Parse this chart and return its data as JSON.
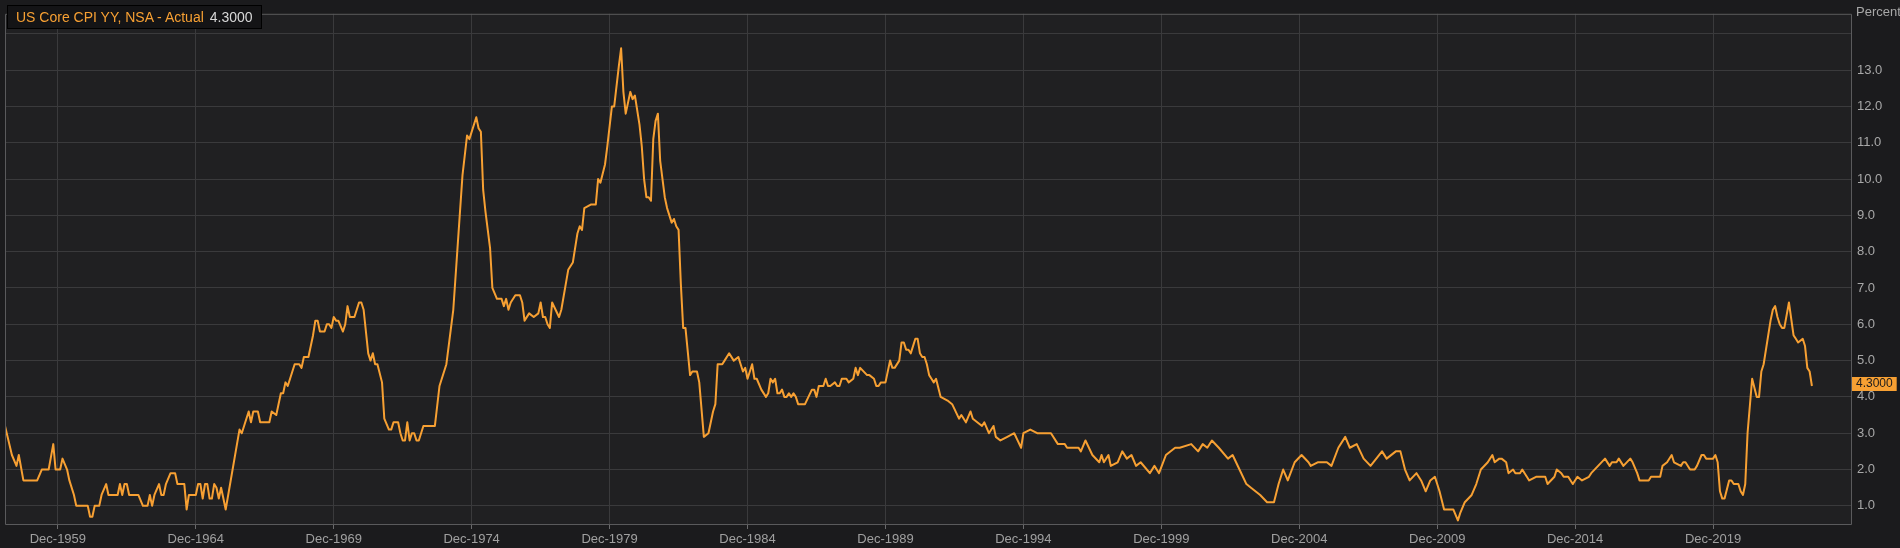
{
  "chart_data": {
    "type": "line",
    "ylabel": "Percent",
    "legend": "top left",
    "grid": true,
    "xlim": [
      "1958-01",
      "2024-12"
    ],
    "xticks": [
      {
        "value": "1959-12",
        "label": "Dec-1959"
      },
      {
        "value": "1964-12",
        "label": "Dec-1964"
      },
      {
        "value": "1969-12",
        "label": "Dec-1969"
      },
      {
        "value": "1974-12",
        "label": "Dec-1974"
      },
      {
        "value": "1979-12",
        "label": "Dec-1979"
      },
      {
        "value": "1984-12",
        "label": "Dec-1984"
      },
      {
        "value": "1989-12",
        "label": "Dec-1989"
      },
      {
        "value": "1994-12",
        "label": "Dec-1994"
      },
      {
        "value": "1999-12",
        "label": "Dec-1999"
      },
      {
        "value": "2004-12",
        "label": "Dec-2004"
      },
      {
        "value": "2009-12",
        "label": "Dec-2009"
      },
      {
        "value": "2014-12",
        "label": "Dec-2014"
      },
      {
        "value": "2019-12",
        "label": "Dec-2019"
      }
    ],
    "ylim": [
      0.5,
      14.55
    ],
    "yticks": [
      {
        "value": 1,
        "label": "1.0"
      },
      {
        "value": 2,
        "label": "2.0"
      },
      {
        "value": 3,
        "label": "3.0"
      },
      {
        "value": 4,
        "label": "4.0"
      },
      {
        "value": 5,
        "label": "5.0"
      },
      {
        "value": 6,
        "label": "6.0"
      },
      {
        "value": 7,
        "label": "7.0"
      },
      {
        "value": 8,
        "label": "8.0"
      },
      {
        "value": 9,
        "label": "9.0"
      },
      {
        "value": 10,
        "label": "10.0"
      },
      {
        "value": 11,
        "label": "11.0"
      },
      {
        "value": 12,
        "label": "12.0"
      },
      {
        "value": 13,
        "label": "13.0"
      },
      {
        "value": 14,
        "label": null
      }
    ],
    "series": [
      {
        "name": "US Core CPI YY, NSA - Actual",
        "color": "#f7a033",
        "x": [
          "1958-01",
          "1958-04",
          "1958-06",
          "1958-07",
          "1958-09",
          "1959-03",
          "1959-05",
          "1959-08",
          "1959-10",
          "1959-11",
          "1960-01",
          "1960-02",
          "1960-04",
          "1960-05",
          "1960-07",
          "1960-08",
          "1961-01",
          "1961-02",
          "1961-03",
          "1961-04",
          "1961-06",
          "1961-07",
          "1961-09",
          "1961-10",
          "1962-02",
          "1962-03",
          "1962-04",
          "1962-05",
          "1962-06",
          "1962-07",
          "1962-11",
          "1963-01",
          "1963-03",
          "1963-04",
          "1963-05",
          "1963-06",
          "1963-08",
          "1963-09",
          "1963-10",
          "1963-11",
          "1964-01",
          "1964-03",
          "1964-04",
          "1964-07",
          "1964-08",
          "1964-09",
          "1964-12",
          "1965-01",
          "1965-02",
          "1965-03",
          "1965-04",
          "1965-05",
          "1965-06",
          "1965-07",
          "1965-08",
          "1965-09",
          "1965-10",
          "1965-11",
          "1965-12",
          "1966-01",
          "1966-07",
          "1966-08",
          "1966-11",
          "1966-12",
          "1967-01",
          "1967-03",
          "1967-04",
          "1967-08",
          "1967-09",
          "1967-11",
          "1968-01",
          "1968-02",
          "1968-03",
          "1968-04",
          "1968-07",
          "1968-09",
          "1968-10",
          "1968-11",
          "1969-01",
          "1969-03",
          "1969-04",
          "1969-05",
          "1969-06",
          "1969-08",
          "1969-09",
          "1969-10",
          "1969-11",
          "1969-12",
          "1970-01",
          "1970-02",
          "1970-04",
          "1970-05",
          "1970-06",
          "1970-07",
          "1970-09",
          "1970-11",
          "1970-12",
          "1971-01",
          "1971-03",
          "1971-04",
          "1971-05",
          "1971-06",
          "1971-07",
          "1971-09",
          "1971-10",
          "1971-12",
          "1972-01",
          "1972-02",
          "1972-04",
          "1972-05",
          "1972-06",
          "1972-07",
          "1972-08",
          "1972-09",
          "1972-10",
          "1972-11",
          "1972-12",
          "1973-01",
          "1973-03",
          "1973-08",
          "1973-10",
          "1974-01",
          "1974-04",
          "1974-08",
          "1974-10",
          "1974-11",
          "1975-02",
          "1975-03",
          "1975-04",
          "1975-05",
          "1975-06",
          "1975-08",
          "1975-09",
          "1975-11",
          "1976-01",
          "1976-02",
          "1976-03",
          "1976-04",
          "1976-05",
          "1976-07",
          "1976-09",
          "1976-10",
          "1976-11",
          "1977-01",
          "1977-03",
          "1977-05",
          "1977-06",
          "1977-07",
          "1977-08",
          "1977-09",
          "1977-10",
          "1977-11",
          "1978-02",
          "1978-03",
          "1978-06",
          "1978-08",
          "1978-10",
          "1978-11",
          "1978-12",
          "1979-01",
          "1979-04",
          "1979-06",
          "1979-07",
          "1979-08",
          "1979-10",
          "1979-11",
          "1980-01",
          "1980-02",
          "1980-04",
          "1980-05",
          "1980-06",
          "1980-07",
          "1980-09",
          "1980-10",
          "1980-11",
          "1981-01",
          "1981-02",
          "1981-03",
          "1981-04",
          "1981-05",
          "1981-06",
          "1981-07",
          "1981-08",
          "1981-09",
          "1981-10",
          "1981-12",
          "1982-01",
          "1982-03",
          "1982-04",
          "1982-05",
          "1982-06",
          "1982-07",
          "1982-08",
          "1982-09",
          "1982-11",
          "1982-12",
          "1983-02",
          "1983-03",
          "1983-05",
          "1983-07",
          "1983-09",
          "1983-10",
          "1983-11",
          "1984-01",
          "1984-02",
          "1984-04",
          "1984-06",
          "1984-08",
          "1984-10",
          "1984-11",
          "1984-12",
          "1985-02",
          "1985-03",
          "1985-04",
          "1985-06",
          "1985-08",
          "1985-09",
          "1985-10",
          "1985-11",
          "1985-12",
          "1986-01",
          "1986-02",
          "1986-03",
          "1986-04",
          "1986-05",
          "1986-06",
          "1986-07",
          "1986-08",
          "1986-09",
          "1986-10",
          "1987-01",
          "1987-04",
          "1987-05",
          "1987-06",
          "1987-07",
          "1987-09",
          "1987-10",
          "1987-11",
          "1987-12",
          "1988-02",
          "1988-03",
          "1988-04",
          "1988-05",
          "1988-07",
          "1988-08",
          "1988-10",
          "1988-11",
          "1988-12",
          "1989-01",
          "1989-04",
          "1989-05",
          "1989-07",
          "1989-08",
          "1989-09",
          "1989-10",
          "1989-12",
          "1990-02",
          "1990-03",
          "1990-04",
          "1990-06",
          "1990-07",
          "1990-08",
          "1990-09",
          "1990-10",
          "1990-11",
          "1991-01",
          "1991-02",
          "1991-03",
          "1991-04",
          "1991-05",
          "1991-06",
          "1991-07",
          "1991-08",
          "1991-09",
          "1991-10",
          "1991-12",
          "1992-03",
          "1992-05",
          "1992-08",
          "1992-09",
          "1992-11",
          "1993-01",
          "1993-02",
          "1993-06",
          "1993-07",
          "1993-09",
          "1993-11",
          "1993-12",
          "1994-02",
          "1994-05",
          "1994-08",
          "1994-11",
          "1994-12",
          "1995-03",
          "1995-06",
          "1995-12",
          "1996-03",
          "1996-06",
          "1996-07",
          "1996-12",
          "1997-01",
          "1997-03",
          "1997-06",
          "1997-09",
          "1997-10",
          "1997-11",
          "1998-01",
          "1998-02",
          "1998-05",
          "1998-07",
          "1998-09",
          "1998-11",
          "1999-01",
          "1999-03",
          "1999-07",
          "1999-09",
          "1999-11",
          "2000-02",
          "2000-06",
          "2000-08",
          "2001-01",
          "2001-04",
          "2001-06",
          "2001-08",
          "2001-10",
          "2002-01",
          "2002-05",
          "2002-07",
          "2002-10",
          "2003-01",
          "2003-03",
          "2003-07",
          "2003-10",
          "2004-01",
          "2004-03",
          "2004-05",
          "2004-07",
          "2004-10",
          "2005-01",
          "2005-04",
          "2005-05",
          "2005-08",
          "2005-12",
          "2006-02",
          "2006-05",
          "2006-08",
          "2006-10",
          "2007-01",
          "2007-04",
          "2007-07",
          "2007-12",
          "2008-02",
          "2008-06",
          "2008-08",
          "2008-10",
          "2008-12",
          "2009-03",
          "2009-05",
          "2009-07",
          "2009-09",
          "2009-11",
          "2010-01",
          "2010-03",
          "2010-07",
          "2010-09",
          "2010-10",
          "2010-12",
          "2011-03",
          "2011-05",
          "2011-07",
          "2011-10",
          "2011-12",
          "2012-01",
          "2012-03",
          "2012-04",
          "2012-06",
          "2012-07",
          "2012-09",
          "2012-10",
          "2012-12",
          "2013-01",
          "2013-03",
          "2013-04",
          "2013-07",
          "2013-11",
          "2013-12",
          "2014-03",
          "2014-04",
          "2014-06",
          "2014-07",
          "2014-09",
          "2014-10",
          "2014-11",
          "2015-01",
          "2015-03",
          "2015-06",
          "2015-07",
          "2016-01",
          "2016-03",
          "2016-04",
          "2016-06",
          "2016-07",
          "2016-09",
          "2016-12",
          "2017-01",
          "2017-03",
          "2017-04",
          "2017-08",
          "2017-09",
          "2017-11",
          "2018-01",
          "2018-02",
          "2018-04",
          "2018-06",
          "2018-07",
          "2018-10",
          "2018-11",
          "2018-12",
          "2019-02",
          "2019-04",
          "2019-05",
          "2019-07",
          "2019-08",
          "2019-09",
          "2019-12",
          "2020-01",
          "2020-02",
          "2020-03",
          "2020-04",
          "2020-05",
          "2020-07",
          "2020-08",
          "2020-09",
          "2020-11",
          "2020-12",
          "2021-01",
          "2021-02",
          "2021-03",
          "2021-05",
          "2021-07",
          "2021-08",
          "2021-09",
          "2021-10",
          "2022-01",
          "2022-02",
          "2022-03",
          "2022-04",
          "2022-05",
          "2022-06",
          "2022-07",
          "2022-09",
          "2022-11",
          "2022-12",
          "2023-01",
          "2023-03",
          "2023-04",
          "2023-05",
          "2023-06",
          "2023-07"
        ],
        "values": [
          3.2,
          2.4,
          2.1,
          2.4,
          1.7,
          1.7,
          2.0,
          2.0,
          2.7,
          2.0,
          2.0,
          2.3,
          2.0,
          1.7,
          1.3,
          1.0,
          1.0,
          0.7,
          0.7,
          1.0,
          1.0,
          1.3,
          1.6,
          1.3,
          1.3,
          1.6,
          1.3,
          1.6,
          1.6,
          1.3,
          1.3,
          1.0,
          1.0,
          1.3,
          1.0,
          1.3,
          1.6,
          1.3,
          1.3,
          1.6,
          1.9,
          1.9,
          1.6,
          1.6,
          0.9,
          1.3,
          1.3,
          1.6,
          1.6,
          1.2,
          1.6,
          1.6,
          1.2,
          1.2,
          1.6,
          1.5,
          1.2,
          1.5,
          1.2,
          0.9,
          3.1,
          3.0,
          3.6,
          3.3,
          3.6,
          3.6,
          3.3,
          3.3,
          3.6,
          3.5,
          4.1,
          4.1,
          4.4,
          4.3,
          4.9,
          4.9,
          4.8,
          5.1,
          5.1,
          5.7,
          6.1,
          6.1,
          5.8,
          5.8,
          6.0,
          6.0,
          5.9,
          6.2,
          6.1,
          6.1,
          5.8,
          6.0,
          6.5,
          6.2,
          6.2,
          6.6,
          6.6,
          6.4,
          5.2,
          5.0,
          5.2,
          4.9,
          4.9,
          4.4,
          3.4,
          3.1,
          3.1,
          3.3,
          3.3,
          3.0,
          2.8,
          2.8,
          3.3,
          2.8,
          3.0,
          3.0,
          2.8,
          2.8,
          3.2,
          3.2,
          4.3,
          4.9,
          6.4,
          10.1,
          11.2,
          11.1,
          11.7,
          11.4,
          11.3,
          9.7,
          9.1,
          8.1,
          7.0,
          6.7,
          6.7,
          6.5,
          6.7,
          6.4,
          6.6,
          6.8,
          6.8,
          6.6,
          6.1,
          6.3,
          6.2,
          6.3,
          6.6,
          6.2,
          6.2,
          6.0,
          5.9,
          6.6,
          6.2,
          6.4,
          7.5,
          7.7,
          8.5,
          8.7,
          8.6,
          9.2,
          9.3,
          9.3,
          10.0,
          9.9,
          10.4,
          10.9,
          12.0,
          12.0,
          13.1,
          13.6,
          12.4,
          11.8,
          12.4,
          12.2,
          12.3,
          11.5,
          10.9,
          10.0,
          9.5,
          9.5,
          9.4,
          11.1,
          11.6,
          11.8,
          10.5,
          9.5,
          9.2,
          8.8,
          8.9,
          8.7,
          8.6,
          7.1,
          5.9,
          5.9,
          4.6,
          4.7,
          4.7,
          4.4,
          2.9,
          3.0,
          3.6,
          3.8,
          4.9,
          4.9,
          5.0,
          5.2,
          5.0,
          5.1,
          4.7,
          4.8,
          4.5,
          4.9,
          4.5,
          4.5,
          4.2,
          4.0,
          4.1,
          4.5,
          4.4,
          4.5,
          4.1,
          4.1,
          4.2,
          4.0,
          4.0,
          4.1,
          4.0,
          4.1,
          4.0,
          3.8,
          3.8,
          4.2,
          4.2,
          4.0,
          4.3,
          4.3,
          4.5,
          4.3,
          4.3,
          4.4,
          4.3,
          4.3,
          4.5,
          4.5,
          4.4,
          4.5,
          4.8,
          4.6,
          4.8,
          4.6,
          4.6,
          4.5,
          4.3,
          4.3,
          4.4,
          4.4,
          5.0,
          4.8,
          4.8,
          5.0,
          5.5,
          5.5,
          5.3,
          5.3,
          5.2,
          5.6,
          5.6,
          5.2,
          5.1,
          5.1,
          4.9,
          4.6,
          4.5,
          4.4,
          4.5,
          4.0,
          3.9,
          3.8,
          3.4,
          3.5,
          3.3,
          3.6,
          3.4,
          3.2,
          3.3,
          3.0,
          3.2,
          2.9,
          2.8,
          2.9,
          3.0,
          2.6,
          3.0,
          3.1,
          3.0,
          3.0,
          2.7,
          2.7,
          2.6,
          2.6,
          2.5,
          2.8,
          2.4,
          2.2,
          2.4,
          2.2,
          2.4,
          2.1,
          2.2,
          2.5,
          2.3,
          2.4,
          2.1,
          2.2,
          1.9,
          2.1,
          1.9,
          2.4,
          2.6,
          2.6,
          2.7,
          2.5,
          2.7,
          2.6,
          2.8,
          2.6,
          2.3,
          2.4,
          2.0,
          1.6,
          1.5,
          1.3,
          1.1,
          1.1,
          1.6,
          2.0,
          1.7,
          2.2,
          2.4,
          2.2,
          2.1,
          2.2,
          2.2,
          2.1,
          2.6,
          2.9,
          2.6,
          2.7,
          2.3,
          2.1,
          2.5,
          2.3,
          2.5,
          2.5,
          2.0,
          1.7,
          1.9,
          1.7,
          1.4,
          1.7,
          1.8,
          1.4,
          0.9,
          0.9,
          0.6,
          0.8,
          1.1,
          1.3,
          1.6,
          2.0,
          2.2,
          2.4,
          2.2,
          2.3,
          2.3,
          2.2,
          1.9,
          2.0,
          1.9,
          1.9,
          2.0,
          1.8,
          1.7,
          1.8,
          1.8,
          1.6,
          1.8,
          2.0,
          1.9,
          1.8,
          1.8,
          1.7,
          1.6,
          1.8,
          1.7,
          1.8,
          1.9,
          2.3,
          2.1,
          2.2,
          2.2,
          2.3,
          2.1,
          2.3,
          2.2,
          1.9,
          1.7,
          1.7,
          1.8,
          1.8,
          1.8,
          2.1,
          2.2,
          2.4,
          2.2,
          2.1,
          2.2,
          2.2,
          2.0,
          2.0,
          2.1,
          2.4,
          2.4,
          2.3,
          2.3,
          2.4,
          2.2,
          1.4,
          1.2,
          1.2,
          1.7,
          1.7,
          1.6,
          1.6,
          1.4,
          1.3,
          1.6,
          3.0,
          4.5,
          4.0,
          4.0,
          4.7,
          4.9,
          6.1,
          6.4,
          6.5,
          6.2,
          6.0,
          5.9,
          5.9,
          6.6,
          5.7,
          5.6,
          5.5,
          5.6,
          5.4,
          4.8,
          4.7,
          4.3
        ]
      }
    ],
    "annotations": [
      "4.3000"
    ]
  }
}
